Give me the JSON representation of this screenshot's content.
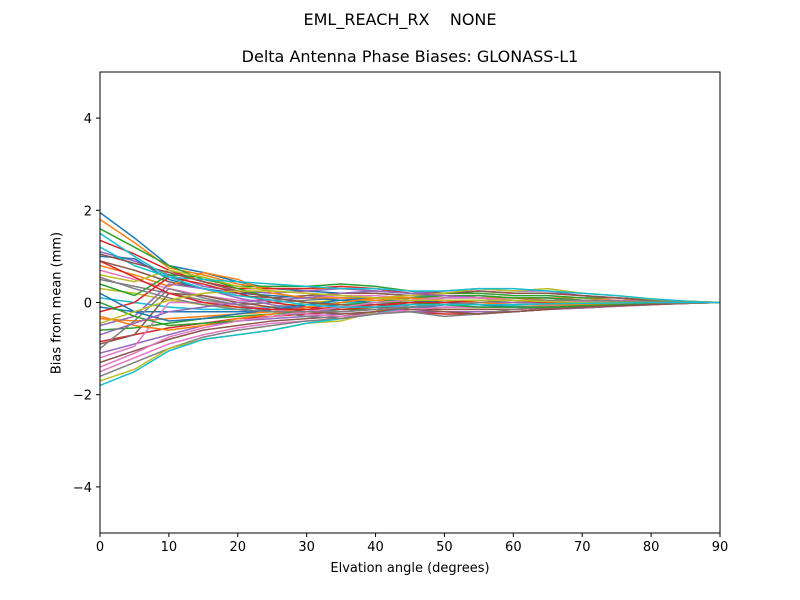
{
  "chart_data": {
    "type": "line",
    "suptitle": "EML_REACH_RX    NONE",
    "title": "Delta Antenna Phase Biases: GLONASS-L1",
    "xlabel": "Elvation angle (degrees)",
    "ylabel": "Bias from mean (mm)",
    "xlim": [
      0,
      90
    ],
    "ylim": [
      -5,
      5
    ],
    "xticks": [
      0,
      10,
      20,
      30,
      40,
      50,
      60,
      70,
      80,
      90
    ],
    "xticklabels": [
      "0",
      "10",
      "20",
      "30",
      "40",
      "50",
      "60",
      "70",
      "80",
      "90"
    ],
    "yticks": [
      -4,
      -2,
      0,
      2,
      4
    ],
    "yticklabels": [
      "−4",
      "−2",
      "0",
      "2",
      "4"
    ],
    "x": [
      0,
      5,
      10,
      15,
      20,
      25,
      30,
      35,
      40,
      45,
      50,
      55,
      60,
      65,
      70,
      75,
      80,
      85,
      90
    ],
    "grid": false,
    "series_colors": [
      "#1f77b4",
      "#ff7f0e",
      "#2ca02c",
      "#d62728",
      "#9467bd",
      "#8c564b",
      "#e377c2",
      "#7f7f7f",
      "#bcbd22",
      "#17becf"
    ],
    "series": [
      {
        "values": [
          1.95,
          1.4,
          0.8,
          0.65,
          0.45,
          0.3,
          0.25,
          0.2,
          0.2,
          0.15,
          0.15,
          0.1,
          0.1,
          0.1,
          0.05,
          0.05,
          0.05,
          0.02,
          0
        ]
      },
      {
        "values": [
          1.8,
          1.3,
          0.75,
          0.6,
          0.4,
          0.3,
          0.3,
          0.3,
          0.25,
          0.2,
          0.15,
          0.15,
          0.1,
          0.1,
          0.1,
          0.05,
          0.05,
          0.02,
          0
        ]
      },
      {
        "values": [
          1.6,
          1.2,
          0.8,
          0.5,
          0.35,
          0.35,
          0.35,
          0.4,
          0.35,
          0.25,
          0.2,
          0.2,
          0.15,
          0.15,
          0.1,
          0.1,
          0.05,
          0.02,
          0
        ]
      },
      {
        "values": [
          1.35,
          1.05,
          0.7,
          0.45,
          0.3,
          0.3,
          0.3,
          0.35,
          0.3,
          0.2,
          0.2,
          0.25,
          0.2,
          0.2,
          0.15,
          0.1,
          0.05,
          0.02,
          0
        ]
      },
      {
        "values": [
          1.1,
          0.9,
          0.6,
          0.35,
          0.25,
          0.2,
          0.25,
          0.3,
          0.25,
          0.2,
          0.25,
          0.3,
          0.25,
          0.25,
          0.15,
          0.1,
          0.05,
          0.02,
          0
        ]
      },
      {
        "values": [
          0.9,
          0.7,
          0.45,
          0.3,
          0.15,
          0.1,
          0.15,
          0.2,
          0.2,
          0.15,
          0.2,
          0.25,
          0.2,
          0.2,
          0.15,
          0.1,
          0.05,
          0.02,
          0
        ]
      },
      {
        "values": [
          0.7,
          0.5,
          0.3,
          0.15,
          0.05,
          0.05,
          0.1,
          0.15,
          0.15,
          0.1,
          0.1,
          0.15,
          0.1,
          0.1,
          0.05,
          0.05,
          0.02,
          0.01,
          0
        ]
      },
      {
        "values": [
          0.5,
          0.35,
          0.2,
          0.05,
          -0.05,
          0.0,
          0.05,
          0.1,
          0.1,
          0.05,
          0.05,
          0.05,
          0.05,
          0.05,
          0.02,
          0.02,
          0.01,
          0.0,
          0
        ]
      },
      {
        "values": [
          0.3,
          0.2,
          0.05,
          -0.05,
          -0.1,
          -0.1,
          0.0,
          0.05,
          0.05,
          0.0,
          0.0,
          0.0,
          0.0,
          0.0,
          0.0,
          0.0,
          0.0,
          0.0,
          0
        ]
      },
      {
        "values": [
          0.1,
          0.0,
          -0.1,
          -0.15,
          -0.15,
          -0.1,
          -0.05,
          0.0,
          0.0,
          -0.05,
          -0.05,
          -0.05,
          -0.05,
          -0.03,
          -0.02,
          -0.02,
          -0.01,
          0.0,
          0
        ]
      },
      {
        "values": [
          -0.1,
          -0.2,
          -0.2,
          -0.2,
          -0.2,
          -0.15,
          -0.1,
          -0.05,
          -0.05,
          -0.1,
          -0.1,
          -0.1,
          -0.1,
          -0.08,
          -0.05,
          -0.04,
          -0.02,
          -0.01,
          0
        ]
      },
      {
        "values": [
          -0.35,
          -0.4,
          -0.35,
          -0.3,
          -0.25,
          -0.2,
          -0.15,
          -0.1,
          -0.1,
          -0.15,
          -0.15,
          -0.15,
          -0.15,
          -0.12,
          -0.08,
          -0.05,
          -0.03,
          -0.01,
          0
        ]
      },
      {
        "values": [
          -0.6,
          -0.55,
          -0.45,
          -0.35,
          -0.3,
          -0.25,
          -0.2,
          -0.15,
          -0.15,
          -0.2,
          -0.2,
          -0.2,
          -0.2,
          -0.15,
          -0.1,
          -0.07,
          -0.04,
          -0.02,
          0
        ]
      },
      {
        "values": [
          -0.85,
          -0.7,
          -0.55,
          -0.45,
          -0.35,
          -0.3,
          -0.25,
          -0.2,
          -0.15,
          -0.2,
          -0.25,
          -0.25,
          -0.2,
          -0.15,
          -0.12,
          -0.08,
          -0.05,
          -0.02,
          0
        ]
      },
      {
        "values": [
          -1.1,
          -0.9,
          -0.7,
          -0.5,
          -0.4,
          -0.35,
          -0.3,
          -0.25,
          -0.2,
          -0.2,
          -0.2,
          -0.2,
          -0.2,
          -0.15,
          -0.12,
          -0.08,
          -0.05,
          -0.02,
          0
        ]
      },
      {
        "values": [
          -1.3,
          -1.05,
          -0.8,
          -0.6,
          -0.5,
          -0.4,
          -0.35,
          -0.3,
          -0.2,
          -0.15,
          -0.15,
          -0.15,
          -0.15,
          -0.12,
          -0.1,
          -0.07,
          -0.04,
          -0.02,
          0
        ]
      },
      {
        "values": [
          -1.5,
          -1.2,
          -0.9,
          -0.7,
          -0.55,
          -0.45,
          -0.4,
          -0.35,
          -0.25,
          -0.15,
          -0.1,
          -0.1,
          -0.1,
          -0.1,
          -0.08,
          -0.05,
          -0.03,
          -0.01,
          0
        ]
      },
      {
        "values": [
          -1.6,
          -1.3,
          -1.0,
          -0.75,
          -0.6,
          -0.5,
          -0.4,
          -0.35,
          -0.2,
          -0.1,
          -0.05,
          -0.05,
          -0.05,
          -0.05,
          -0.04,
          -0.03,
          -0.02,
          -0.01,
          0
        ]
      },
      {
        "values": [
          -1.7,
          -1.45,
          -1.0,
          -0.8,
          -0.7,
          -0.6,
          -0.45,
          -0.4,
          -0.2,
          -0.05,
          0.0,
          0.0,
          -0.05,
          -0.05,
          -0.04,
          -0.03,
          -0.02,
          -0.01,
          0
        ]
      },
      {
        "values": [
          -1.8,
          -1.5,
          -1.05,
          -0.8,
          -0.7,
          -0.6,
          -0.45,
          -0.35,
          -0.25,
          -0.1,
          -0.05,
          -0.05,
          -0.08,
          -0.1,
          -0.08,
          -0.05,
          -0.03,
          -0.01,
          0
        ]
      },
      {
        "values": [
          1.0,
          0.95,
          0.5,
          0.3,
          0.2,
          0.15,
          0.1,
          0.05,
          0.0,
          0.05,
          0.1,
          0.1,
          0.05,
          0.05,
          0.05,
          0.03,
          0.02,
          0.01,
          0
        ]
      },
      {
        "values": [
          0.8,
          0.6,
          0.35,
          0.65,
          0.5,
          0.2,
          0.1,
          0.1,
          0.05,
          0.1,
          0.15,
          0.1,
          0.1,
          0.05,
          0.05,
          0.03,
          0.02,
          0.01,
          0
        ]
      },
      {
        "values": [
          0.4,
          0.15,
          0.6,
          0.55,
          0.3,
          0.1,
          0.0,
          -0.05,
          0.0,
          0.1,
          0.15,
          0.15,
          0.1,
          0.1,
          0.05,
          0.03,
          0.02,
          0.01,
          0
        ]
      },
      {
        "values": [
          -0.2,
          0.0,
          0.55,
          0.4,
          0.2,
          0.0,
          -0.1,
          -0.15,
          -0.1,
          0.0,
          0.05,
          0.05,
          0.05,
          0.05,
          0.03,
          0.02,
          0.01,
          0.0,
          0
        ]
      },
      {
        "values": [
          -0.5,
          -0.3,
          0.4,
          0.3,
          0.1,
          -0.05,
          -0.15,
          -0.2,
          -0.15,
          -0.05,
          0.0,
          0.0,
          0.0,
          0.0,
          0.0,
          0.0,
          0.0,
          0.0,
          0
        ]
      },
      {
        "values": [
          -0.9,
          -0.7,
          0.2,
          0.15,
          0.0,
          -0.1,
          -0.2,
          -0.25,
          -0.2,
          -0.1,
          -0.05,
          -0.05,
          -0.05,
          -0.03,
          -0.02,
          -0.01,
          0.0,
          0.0,
          0
        ]
      },
      {
        "values": [
          -1.2,
          -0.95,
          0.0,
          0.0,
          -0.05,
          -0.15,
          -0.25,
          -0.3,
          -0.25,
          -0.15,
          -0.1,
          -0.1,
          -0.1,
          -0.08,
          -0.05,
          -0.03,
          -0.02,
          -0.01,
          0
        ]
      },
      {
        "values": [
          -1.0,
          -0.4,
          0.3,
          0.1,
          -0.05,
          -0.2,
          -0.3,
          -0.35,
          -0.25,
          -0.2,
          -0.3,
          -0.25,
          -0.15,
          -0.1,
          -0.07,
          -0.05,
          -0.03,
          -0.01,
          0
        ]
      },
      {
        "values": [
          0.6,
          0.45,
          0.7,
          0.55,
          0.35,
          0.25,
          0.2,
          0.15,
          0.1,
          0.15,
          0.2,
          0.3,
          0.25,
          0.3,
          0.2,
          0.15,
          0.07,
          0.03,
          0
        ]
      },
      {
        "values": [
          1.2,
          0.8,
          0.55,
          0.5,
          0.45,
          0.4,
          0.35,
          0.3,
          0.3,
          0.25,
          0.25,
          0.3,
          0.3,
          0.25,
          0.2,
          0.15,
          0.08,
          0.03,
          0
        ]
      },
      {
        "values": [
          0.2,
          -0.2,
          -0.4,
          -0.35,
          -0.25,
          -0.15,
          -0.05,
          0.05,
          0.1,
          0.05,
          0.0,
          -0.05,
          -0.1,
          -0.1,
          -0.08,
          -0.05,
          -0.03,
          -0.01,
          0
        ]
      },
      {
        "values": [
          -0.3,
          -0.5,
          -0.6,
          -0.5,
          -0.35,
          -0.25,
          -0.1,
          0.0,
          0.1,
          0.1,
          0.05,
          0.0,
          -0.05,
          -0.05,
          -0.05,
          -0.03,
          -0.02,
          -0.01,
          0
        ]
      },
      {
        "values": [
          0.0,
          -0.3,
          -0.5,
          -0.45,
          -0.4,
          -0.3,
          -0.2,
          -0.1,
          0.0,
          0.0,
          -0.05,
          -0.1,
          -0.1,
          -0.1,
          -0.07,
          -0.05,
          -0.03,
          -0.01,
          0
        ]
      },
      {
        "values": [
          0.9,
          0.55,
          0.2,
          0.0,
          -0.1,
          -0.15,
          -0.15,
          -0.1,
          -0.05,
          0.0,
          0.0,
          0.05,
          0.05,
          0.0,
          0.0,
          0.0,
          0.0,
          0.0,
          0
        ]
      },
      {
        "values": [
          -0.7,
          -0.45,
          -0.2,
          -0.1,
          0.0,
          0.05,
          0.1,
          0.2,
          0.25,
          0.2,
          0.15,
          0.1,
          0.05,
          0.05,
          0.03,
          0.02,
          0.01,
          0.0,
          0
        ]
      },
      {
        "values": [
          1.05,
          0.85,
          0.65,
          0.45,
          0.25,
          0.1,
          0.0,
          -0.05,
          -0.1,
          -0.15,
          -0.2,
          -0.25,
          -0.2,
          -0.15,
          -0.1,
          -0.07,
          -0.04,
          -0.02,
          0
        ]
      },
      {
        "values": [
          -1.4,
          -1.1,
          -0.75,
          -0.55,
          -0.4,
          -0.3,
          -0.2,
          -0.1,
          0.0,
          0.05,
          0.1,
          0.1,
          0.05,
          0.05,
          0.03,
          0.02,
          0.01,
          0.0,
          0
        ]
      },
      {
        "values": [
          0.55,
          0.3,
          0.1,
          -0.05,
          -0.15,
          -0.2,
          -0.2,
          -0.2,
          -0.15,
          -0.1,
          -0.05,
          0.0,
          0.05,
          0.05,
          0.05,
          0.03,
          0.02,
          0.01,
          0
        ]
      },
      {
        "values": [
          -0.45,
          -0.2,
          0.05,
          0.2,
          0.25,
          0.25,
          0.2,
          0.15,
          0.1,
          0.05,
          0.05,
          0.05,
          0.05,
          0.02,
          0.0,
          0.0,
          0.0,
          0.0,
          0
        ]
      },
      {
        "values": [
          1.5,
          1.0,
          0.55,
          0.3,
          0.15,
          0.05,
          -0.05,
          -0.1,
          -0.1,
          -0.05,
          -0.05,
          -0.05,
          -0.05,
          -0.03,
          -0.02,
          -0.01,
          0.0,
          0.0,
          0
        ]
      }
    ]
  }
}
